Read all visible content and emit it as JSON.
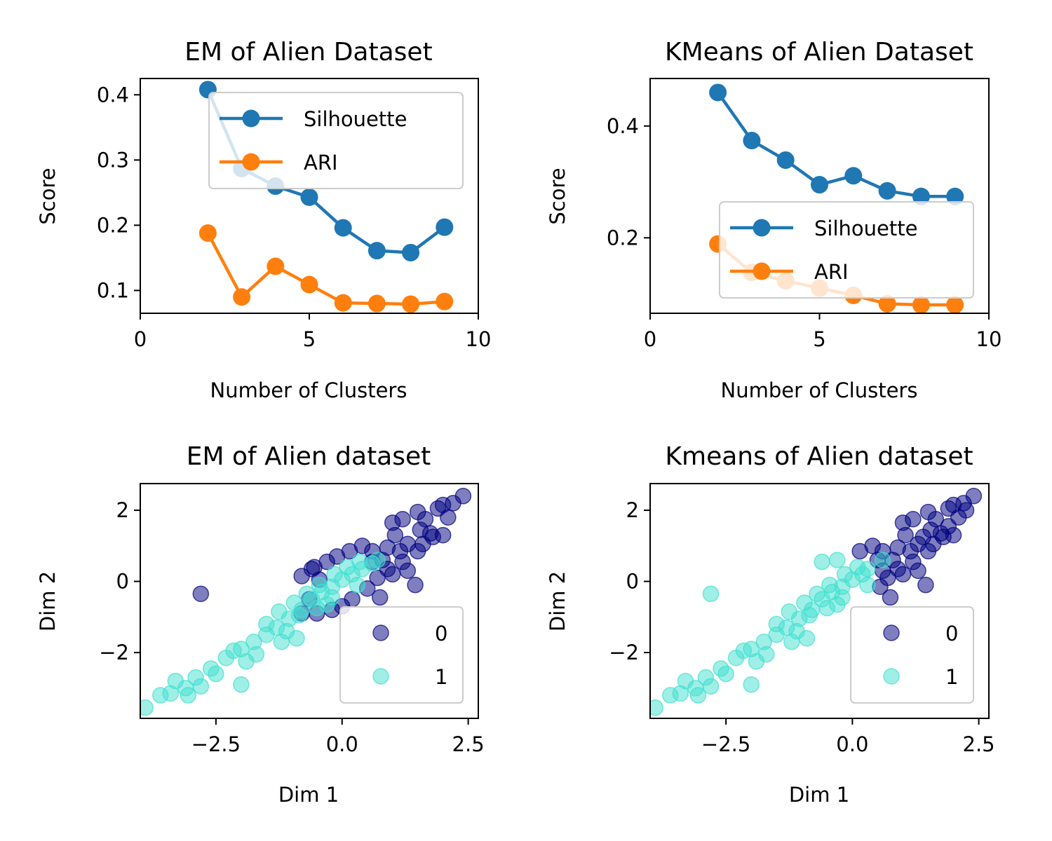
{
  "colors": {
    "silhouette": "#1f77b4",
    "ari": "#ff7f0e",
    "cluster0": "#000080",
    "cluster1": "#40e0d0"
  },
  "chart_data": [
    {
      "type": "line",
      "title": "EM of Alien Dataset",
      "xlabel": "Number of Clusters",
      "ylabel": "Score",
      "xlim": [
        0,
        10
      ],
      "ylim": [
        0.065,
        0.425
      ],
      "xticks": [
        0,
        5,
        10
      ],
      "yticks": [
        0.1,
        0.2,
        0.3,
        0.4
      ],
      "legend_position": "upper-right",
      "x": [
        2,
        3,
        4,
        5,
        6,
        7,
        8,
        9
      ],
      "series": [
        {
          "name": "Silhouette",
          "color_key": "silhouette",
          "values": [
            0.408,
            0.287,
            0.26,
            0.243,
            0.196,
            0.161,
            0.158,
            0.197
          ]
        },
        {
          "name": "ARI",
          "color_key": "ari",
          "values": [
            0.188,
            0.09,
            0.137,
            0.109,
            0.081,
            0.08,
            0.079,
            0.083
          ]
        }
      ]
    },
    {
      "type": "line",
      "title": "KMeans of Alien Dataset",
      "xlabel": "Number of Clusters",
      "ylabel": "Score",
      "xlim": [
        0,
        10
      ],
      "ylim": [
        0.065,
        0.485
      ],
      "xticks": [
        0,
        5,
        10
      ],
      "yticks": [
        0.2,
        0.4
      ],
      "legend_position": "lower-right",
      "x": [
        2,
        3,
        4,
        5,
        6,
        7,
        8,
        9
      ],
      "series": [
        {
          "name": "Silhouette",
          "color_key": "silhouette",
          "values": [
            0.46,
            0.374,
            0.339,
            0.295,
            0.311,
            0.284,
            0.274,
            0.274
          ]
        },
        {
          "name": "ARI",
          "color_key": "ari",
          "values": [
            0.189,
            0.138,
            0.123,
            0.11,
            0.097,
            0.082,
            0.08,
            0.08
          ]
        }
      ]
    },
    {
      "type": "scatter",
      "title": "EM of Alien dataset",
      "xlabel": "Dim 1",
      "ylabel": "Dim 2",
      "xlim": [
        -4.0,
        2.7
      ],
      "ylim": [
        -3.85,
        2.75
      ],
      "xticks": [
        -2.5,
        0.0,
        2.5
      ],
      "xtick_labels": [
        "−2.5",
        "0.0",
        "2.5"
      ],
      "yticks": [
        -2,
        0,
        2
      ],
      "ytick_labels": [
        "−2",
        "0",
        "2"
      ],
      "legend_position": "lower-right",
      "series": [
        {
          "name": "0",
          "color_key": "cluster0",
          "opacity": 0.5,
          "points": [
            [
              -2.8,
              -0.35
            ],
            [
              0.75,
              -0.45
            ],
            [
              2.4,
              2.4
            ],
            [
              2.2,
              2.2
            ],
            [
              2.0,
              2.15
            ],
            [
              1.9,
              2.05
            ],
            [
              1.5,
              1.95
            ],
            [
              1.2,
              1.75
            ],
            [
              1.0,
              1.65
            ],
            [
              1.75,
              1.35
            ],
            [
              2.0,
              1.3
            ],
            [
              1.55,
              1.45
            ],
            [
              1.3,
              1.05
            ],
            [
              0.9,
              0.95
            ],
            [
              0.6,
              0.85
            ],
            [
              0.4,
              1.0
            ],
            [
              0.15,
              0.85
            ],
            [
              -0.1,
              0.7
            ],
            [
              -0.3,
              0.55
            ],
            [
              -0.55,
              0.4
            ],
            [
              -0.8,
              0.15
            ],
            [
              -0.6,
              0.35
            ],
            [
              0.9,
              0.35
            ],
            [
              1.2,
              0.55
            ],
            [
              1.5,
              0.85
            ],
            [
              1.6,
              1.05
            ],
            [
              1.8,
              1.25
            ],
            [
              1.0,
              0.2
            ],
            [
              0.7,
              0.1
            ],
            [
              0.5,
              -0.2
            ],
            [
              0.2,
              -0.5
            ],
            [
              0.0,
              -0.7
            ],
            [
              -0.2,
              -0.8
            ],
            [
              -0.5,
              -0.9
            ],
            [
              -0.8,
              -0.9
            ],
            [
              1.15,
              0.85
            ],
            [
              0.6,
              0.55
            ],
            [
              1.45,
              -0.1
            ],
            [
              1.3,
              0.3
            ],
            [
              -0.45,
              0.05
            ],
            [
              -0.65,
              -0.5
            ],
            [
              1.65,
              1.75
            ],
            [
              2.1,
              1.8
            ],
            [
              1.05,
              1.3
            ],
            [
              0.8,
              0.6
            ]
          ]
        },
        {
          "name": "1",
          "color_key": "cluster1",
          "opacity": 0.5,
          "points": [
            [
              -3.9,
              -3.55
            ],
            [
              -3.6,
              -3.2
            ],
            [
              -3.3,
              -2.8
            ],
            [
              -3.4,
              -3.15
            ],
            [
              -3.1,
              -3.0
            ],
            [
              -2.9,
              -2.7
            ],
            [
              -2.6,
              -2.45
            ],
            [
              -2.3,
              -2.15
            ],
            [
              -2.0,
              -1.9
            ],
            [
              -1.75,
              -1.7
            ],
            [
              -1.5,
              -1.5
            ],
            [
              -1.3,
              -1.3
            ],
            [
              -1.05,
              -1.05
            ],
            [
              -0.8,
              -0.8
            ],
            [
              -0.6,
              -0.5
            ],
            [
              -0.4,
              -0.3
            ],
            [
              -0.2,
              -0.15
            ],
            [
              0.0,
              0.05
            ],
            [
              0.2,
              0.2
            ],
            [
              0.4,
              0.35
            ],
            [
              0.6,
              0.5
            ],
            [
              0.7,
              0.6
            ],
            [
              -2.0,
              -2.9
            ],
            [
              -1.7,
              -2.05
            ],
            [
              -1.2,
              -1.7
            ],
            [
              -1.1,
              -1.4
            ],
            [
              -0.85,
              -0.95
            ],
            [
              -0.5,
              -0.75
            ],
            [
              -0.3,
              -0.65
            ],
            [
              -1.5,
              -1.2
            ],
            [
              -1.25,
              -0.85
            ],
            [
              -0.95,
              -0.6
            ],
            [
              -0.7,
              -0.35
            ],
            [
              -0.45,
              -0.1
            ],
            [
              -0.15,
              0.2
            ],
            [
              0.1,
              0.4
            ],
            [
              0.35,
              0.55
            ],
            [
              -2.5,
              -2.6
            ],
            [
              -2.8,
              -2.95
            ],
            [
              -3.05,
              -3.2
            ],
            [
              -2.15,
              -1.95
            ],
            [
              -1.9,
              -2.25
            ],
            [
              -0.9,
              -1.6
            ],
            [
              -0.2,
              -0.45
            ],
            [
              0.3,
              -0.1
            ]
          ]
        }
      ]
    },
    {
      "type": "scatter",
      "title": "Kmeans of Alien dataset",
      "xlabel": "Dim 1",
      "ylabel": "Dim 2",
      "xlim": [
        -4.0,
        2.7
      ],
      "ylim": [
        -3.85,
        2.75
      ],
      "xticks": [
        -2.5,
        0.0,
        2.5
      ],
      "xtick_labels": [
        "−2.5",
        "0.0",
        "2.5"
      ],
      "yticks": [
        -2,
        0,
        2
      ],
      "ytick_labels": [
        "−2",
        "0",
        "2"
      ],
      "legend_position": "lower-right",
      "series": [
        {
          "name": "0",
          "color_key": "cluster0",
          "opacity": 0.5,
          "points": [
            [
              2.4,
              2.4
            ],
            [
              2.2,
              2.2
            ],
            [
              2.0,
              2.15
            ],
            [
              1.9,
              2.05
            ],
            [
              1.5,
              1.95
            ],
            [
              1.2,
              1.75
            ],
            [
              1.0,
              1.65
            ],
            [
              1.75,
              1.35
            ],
            [
              2.0,
              1.3
            ],
            [
              1.55,
              1.45
            ],
            [
              1.3,
              1.05
            ],
            [
              0.9,
              0.95
            ],
            [
              0.6,
              0.85
            ],
            [
              0.4,
              1.0
            ],
            [
              0.15,
              0.85
            ],
            [
              1.5,
              0.85
            ],
            [
              1.6,
              1.05
            ],
            [
              1.8,
              1.25
            ],
            [
              1.0,
              0.2
            ],
            [
              0.7,
              0.1
            ],
            [
              0.9,
              0.35
            ],
            [
              1.2,
              0.55
            ],
            [
              0.75,
              -0.45
            ],
            [
              0.5,
              0.6
            ],
            [
              1.15,
              0.85
            ],
            [
              1.45,
              -0.1
            ],
            [
              1.3,
              0.3
            ],
            [
              1.65,
              1.75
            ],
            [
              2.1,
              1.8
            ],
            [
              1.05,
              1.3
            ],
            [
              0.8,
              0.6
            ],
            [
              0.6,
              0.3
            ],
            [
              0.55,
              -0.15
            ],
            [
              1.9,
              1.55
            ],
            [
              2.25,
              2.0
            ],
            [
              1.4,
              1.25
            ]
          ]
        },
        {
          "name": "1",
          "color_key": "cluster1",
          "opacity": 0.5,
          "points": [
            [
              -2.8,
              -0.35
            ],
            [
              -3.9,
              -3.55
            ],
            [
              -3.6,
              -3.2
            ],
            [
              -3.3,
              -2.8
            ],
            [
              -3.4,
              -3.15
            ],
            [
              -3.1,
              -3.0
            ],
            [
              -2.9,
              -2.7
            ],
            [
              -2.6,
              -2.45
            ],
            [
              -2.3,
              -2.15
            ],
            [
              -2.0,
              -1.9
            ],
            [
              -1.75,
              -1.7
            ],
            [
              -1.5,
              -1.5
            ],
            [
              -1.3,
              -1.3
            ],
            [
              -1.05,
              -1.05
            ],
            [
              -0.8,
              -0.8
            ],
            [
              -0.6,
              -0.5
            ],
            [
              -0.4,
              -0.3
            ],
            [
              -0.2,
              -0.15
            ],
            [
              0.0,
              0.05
            ],
            [
              0.2,
              0.2
            ],
            [
              0.3,
              0.35
            ],
            [
              -2.0,
              -2.9
            ],
            [
              -1.7,
              -2.05
            ],
            [
              -1.2,
              -1.7
            ],
            [
              -1.1,
              -1.4
            ],
            [
              -0.85,
              -0.95
            ],
            [
              -0.5,
              -0.75
            ],
            [
              -0.3,
              -0.65
            ],
            [
              -1.5,
              -1.2
            ],
            [
              -1.25,
              -0.85
            ],
            [
              -0.95,
              -0.6
            ],
            [
              -0.7,
              -0.35
            ],
            [
              -0.45,
              -0.1
            ],
            [
              -0.15,
              0.2
            ],
            [
              0.1,
              0.4
            ],
            [
              -0.6,
              0.55
            ],
            [
              -0.3,
              0.6
            ],
            [
              0.6,
              0.6
            ],
            [
              -2.5,
              -2.6
            ],
            [
              -2.8,
              -2.95
            ],
            [
              -3.05,
              -3.2
            ],
            [
              -2.15,
              -1.95
            ],
            [
              -1.9,
              -2.25
            ],
            [
              -0.9,
              -1.6
            ],
            [
              -0.2,
              -0.45
            ],
            [
              0.3,
              -0.1
            ]
          ]
        }
      ]
    }
  ]
}
